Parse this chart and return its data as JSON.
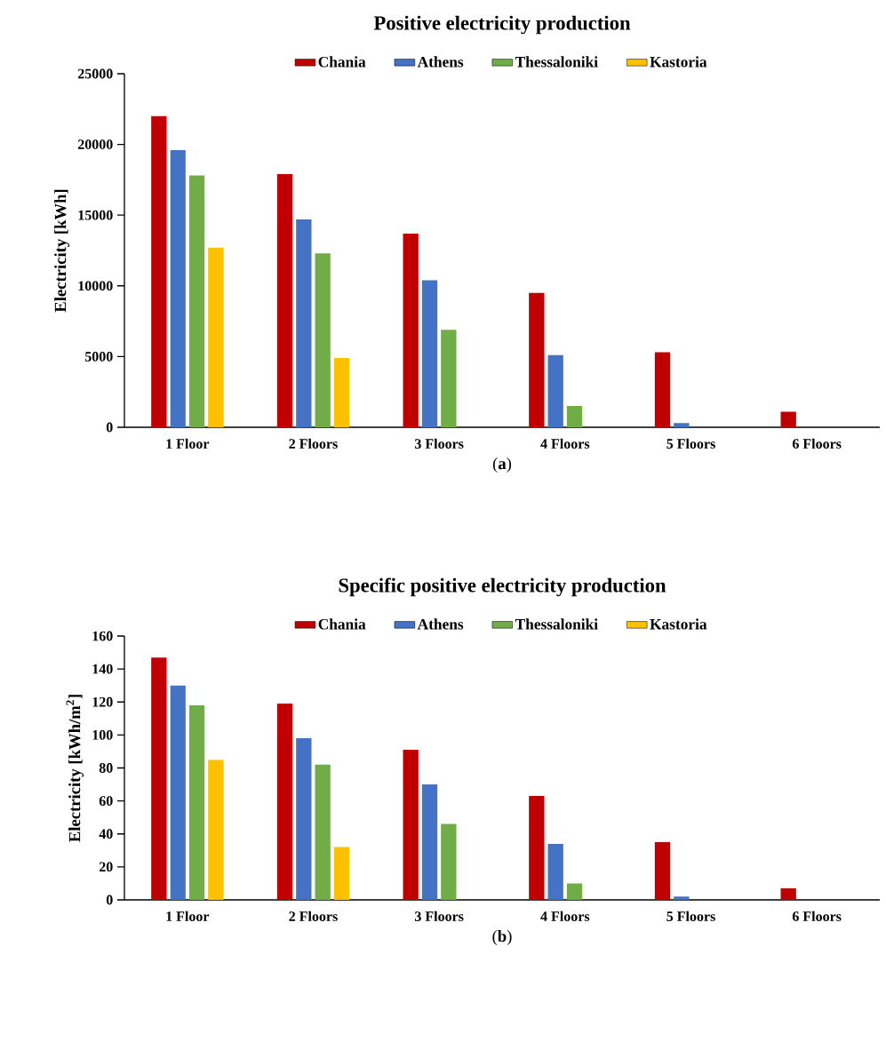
{
  "chart_data": [
    {
      "type": "bar",
      "title": "Positive electricity production",
      "ylabel": "Electricity [kWh]",
      "categories": [
        "1 Floor",
        "2 Floors",
        "3 Floors",
        "4 Floors",
        "5 Floors",
        "6 Floors"
      ],
      "series": [
        {
          "name": "Chania",
          "color": "#c00000",
          "values": [
            22000,
            17900,
            13700,
            9500,
            5300,
            1100
          ]
        },
        {
          "name": "Athens",
          "color": "#4472c4",
          "values": [
            19600,
            14700,
            10400,
            5100,
            300,
            null
          ]
        },
        {
          "name": "Thessaloniki",
          "color": "#70ad47",
          "values": [
            17800,
            12300,
            6900,
            1500,
            null,
            null
          ]
        },
        {
          "name": "Kastoria",
          "color": "#ffc000",
          "values": [
            12700,
            4900,
            null,
            null,
            null,
            null
          ]
        }
      ],
      "ylim": [
        0,
        25000
      ],
      "yticks": [
        0,
        5000,
        10000,
        15000,
        20000,
        25000
      ],
      "legend": "top",
      "grid": false,
      "annotations": [
        "(**a**)"
      ]
    },
    {
      "type": "bar",
      "title": "Specific positive electricity production",
      "ylabel": "Electricity [kWh/m$^{2}$]",
      "categories": [
        "1 Floor",
        "2 Floors",
        "3 Floors",
        "4 Floors",
        "5 Floors",
        "6 Floors"
      ],
      "series": [
        {
          "name": "Chania",
          "color": "#c00000",
          "values": [
            147,
            119,
            91,
            63,
            35,
            7
          ]
        },
        {
          "name": "Athens",
          "color": "#4472c4",
          "values": [
            130,
            98,
            70,
            34,
            2,
            null
          ]
        },
        {
          "name": "Thessaloniki",
          "color": "#70ad47",
          "values": [
            118,
            82,
            46,
            10,
            null,
            null
          ]
        },
        {
          "name": "Kastoria",
          "color": "#ffc000",
          "values": [
            85,
            32,
            null,
            null,
            null,
            null
          ]
        }
      ],
      "ylim": [
        0,
        160
      ],
      "yticks": [
        0,
        20,
        40,
        60,
        80,
        100,
        120,
        140,
        160
      ],
      "legend": "top",
      "grid": false,
      "annotations": [
        "(**b**)"
      ]
    }
  ]
}
